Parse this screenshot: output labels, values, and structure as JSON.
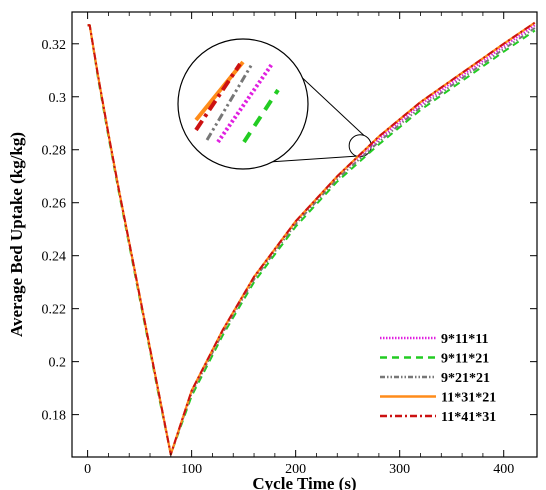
{
  "chart_data": {
    "type": "line",
    "xlabel": "Cycle Time (s)",
    "ylabel": "Average Bed Uptake (kg/kg)",
    "xlim": [
      -15,
      432
    ],
    "ylim": [
      0.164,
      0.332
    ],
    "xticks": [
      0,
      100,
      200,
      300,
      400
    ],
    "yticks": [
      0.18,
      0.2,
      0.22,
      0.24,
      0.26,
      0.28,
      0.3,
      0.32
    ],
    "ytick_labels": [
      "0.18",
      "0.2",
      "0.22",
      "0.24",
      "0.26",
      "0.28",
      "0.3",
      "0.32"
    ],
    "grid": false,
    "legend": "bottom-right",
    "zoom_inset": {
      "x": 262,
      "y": 0.2815
    },
    "series": [
      {
        "name": "9*11*11",
        "color": "#e020e0",
        "dash": "1.5,1.5",
        "x": [
          0,
          2,
          10,
          20,
          30,
          40,
          50,
          60,
          70,
          80,
          100,
          130,
          160,
          200,
          240,
          280,
          320,
          360,
          400,
          430
        ],
        "y": [
          0.327,
          0.327,
          0.308,
          0.286,
          0.265,
          0.245,
          0.225,
          0.205,
          0.185,
          0.165,
          0.189,
          0.212,
          0.232,
          0.253,
          0.27,
          0.284,
          0.297,
          0.308,
          0.319,
          0.327
        ]
      },
      {
        "name": "9*11*21",
        "color": "#22cc22",
        "dash": "7,5",
        "x": [
          0,
          2,
          10,
          20,
          30,
          40,
          50,
          60,
          70,
          80,
          100,
          130,
          160,
          200,
          240,
          280,
          320,
          360,
          400,
          430
        ],
        "y": [
          0.327,
          0.327,
          0.307,
          0.285,
          0.264,
          0.244,
          0.224,
          0.204,
          0.184,
          0.165,
          0.187,
          0.21,
          0.23,
          0.251,
          0.268,
          0.282,
          0.295,
          0.306,
          0.317,
          0.325
        ]
      },
      {
        "name": "9*21*21",
        "color": "#777777",
        "dash": "5,2,1.5,2,1.5,2",
        "x": [
          0,
          2,
          10,
          20,
          30,
          40,
          50,
          60,
          70,
          80,
          100,
          130,
          160,
          200,
          240,
          280,
          320,
          360,
          400,
          430
        ],
        "y": [
          0.327,
          0.327,
          0.308,
          0.286,
          0.265,
          0.245,
          0.225,
          0.205,
          0.185,
          0.165,
          0.188,
          0.211,
          0.231,
          0.252,
          0.269,
          0.283,
          0.296,
          0.307,
          0.318,
          0.326
        ]
      },
      {
        "name": "11*31*21",
        "color": "#ff8c1a",
        "dash": "",
        "x": [
          0,
          2,
          10,
          20,
          30,
          40,
          50,
          60,
          70,
          80,
          100,
          130,
          160,
          200,
          240,
          280,
          320,
          360,
          400,
          430
        ],
        "y": [
          0.327,
          0.327,
          0.308,
          0.286,
          0.265,
          0.245,
          0.225,
          0.205,
          0.185,
          0.165,
          0.189,
          0.212,
          0.232,
          0.253,
          0.27,
          0.285,
          0.298,
          0.309,
          0.32,
          0.328
        ]
      },
      {
        "name": "11*41*31",
        "color": "#cc1111",
        "dash": "7,3,2,3",
        "x": [
          0,
          2,
          10,
          20,
          30,
          40,
          50,
          60,
          70,
          80,
          100,
          130,
          160,
          200,
          240,
          280,
          320,
          360,
          400,
          430
        ],
        "y": [
          0.327,
          0.327,
          0.308,
          0.286,
          0.265,
          0.245,
          0.225,
          0.205,
          0.185,
          0.165,
          0.189,
          0.212,
          0.232,
          0.253,
          0.27,
          0.285,
          0.298,
          0.309,
          0.32,
          0.328
        ]
      }
    ]
  }
}
